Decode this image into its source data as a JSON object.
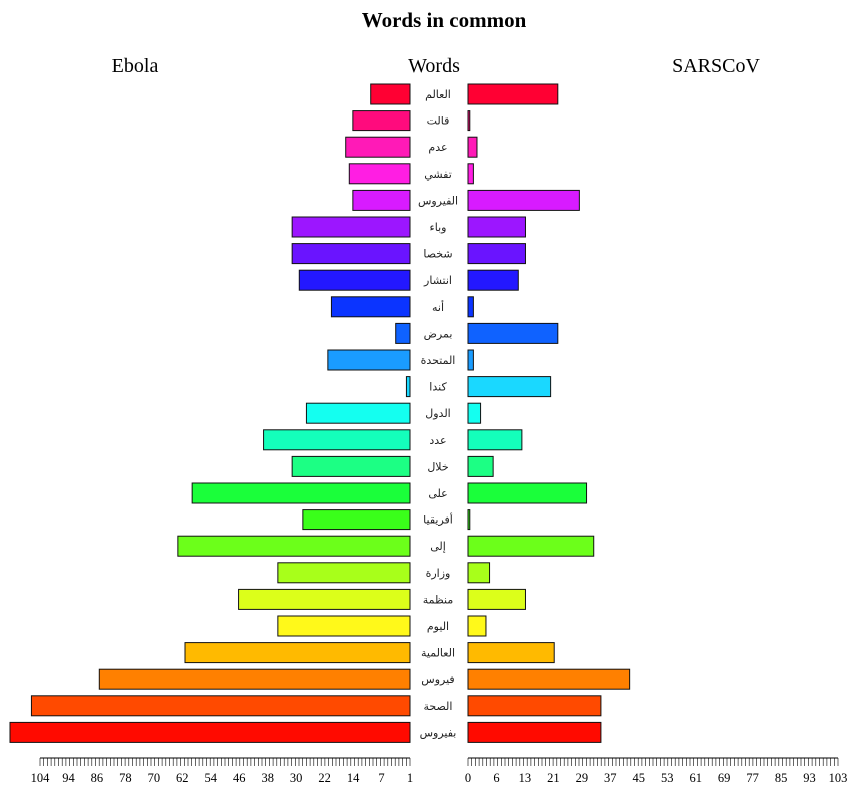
{
  "chart_data": {
    "type": "bar",
    "title": "Words in common",
    "left_header": "Ebola",
    "center_header": "Words",
    "right_header": "SARSCoV",
    "categories": [
      "العالم",
      "قالت",
      "عدم",
      "تفشي",
      "الفيروس",
      "وباء",
      "شخصا",
      "انتشار",
      "أنه",
      "بمرض",
      "المتحدة",
      "كندا",
      "الدول",
      "عدد",
      "خلال",
      "على",
      "أفريقيا",
      "إلى",
      "وزارة",
      "منظمة",
      "اليوم",
      "العالمية",
      "فيروس",
      "الصحة",
      "بفيروس"
    ],
    "series": [
      {
        "name": "Ebola",
        "values": [
          11,
          16,
          18,
          17,
          16,
          33,
          33,
          31,
          22,
          4,
          23,
          1,
          29,
          41,
          33,
          61,
          30,
          65,
          37,
          48,
          37,
          63,
          87,
          106,
          112
        ]
      },
      {
        "name": "SARSCoV",
        "values": [
          25,
          0.5,
          2.5,
          1.5,
          31,
          16,
          16,
          14,
          1.5,
          25,
          1.5,
          23,
          3.5,
          15,
          7,
          33,
          0.5,
          35,
          6,
          16,
          5,
          24,
          45,
          37,
          37
        ]
      }
    ],
    "colors": [
      "#ff0033",
      "#ff0b7d",
      "#ff1ab7",
      "#ff1ee3",
      "#d81bff",
      "#9c16ff",
      "#6a14ff",
      "#2318ff",
      "#0b34ff",
      "#0f62ff",
      "#1a9cff",
      "#1ad8ff",
      "#14fff0",
      "#14ffbb",
      "#1cff84",
      "#1aff3a",
      "#3aff1a",
      "#6cff1a",
      "#a8ff1a",
      "#dcff1a",
      "#fff91a",
      "#ffba00",
      "#ff8000",
      "#ff4a00",
      "#ff0a00"
    ],
    "left_axis": {
      "xlim": [
        0,
        112
      ],
      "tick_labels": [
        "104",
        "94",
        "86",
        "78",
        "70",
        "62",
        "54",
        "46",
        "38",
        "30",
        "22",
        "14",
        "7",
        "1"
      ]
    },
    "right_axis": {
      "xlim": [
        0,
        103
      ],
      "tick_labels": [
        "0",
        "6",
        "13",
        "21",
        "29",
        "37",
        "45",
        "53",
        "61",
        "69",
        "77",
        "85",
        "93",
        "103"
      ]
    }
  }
}
